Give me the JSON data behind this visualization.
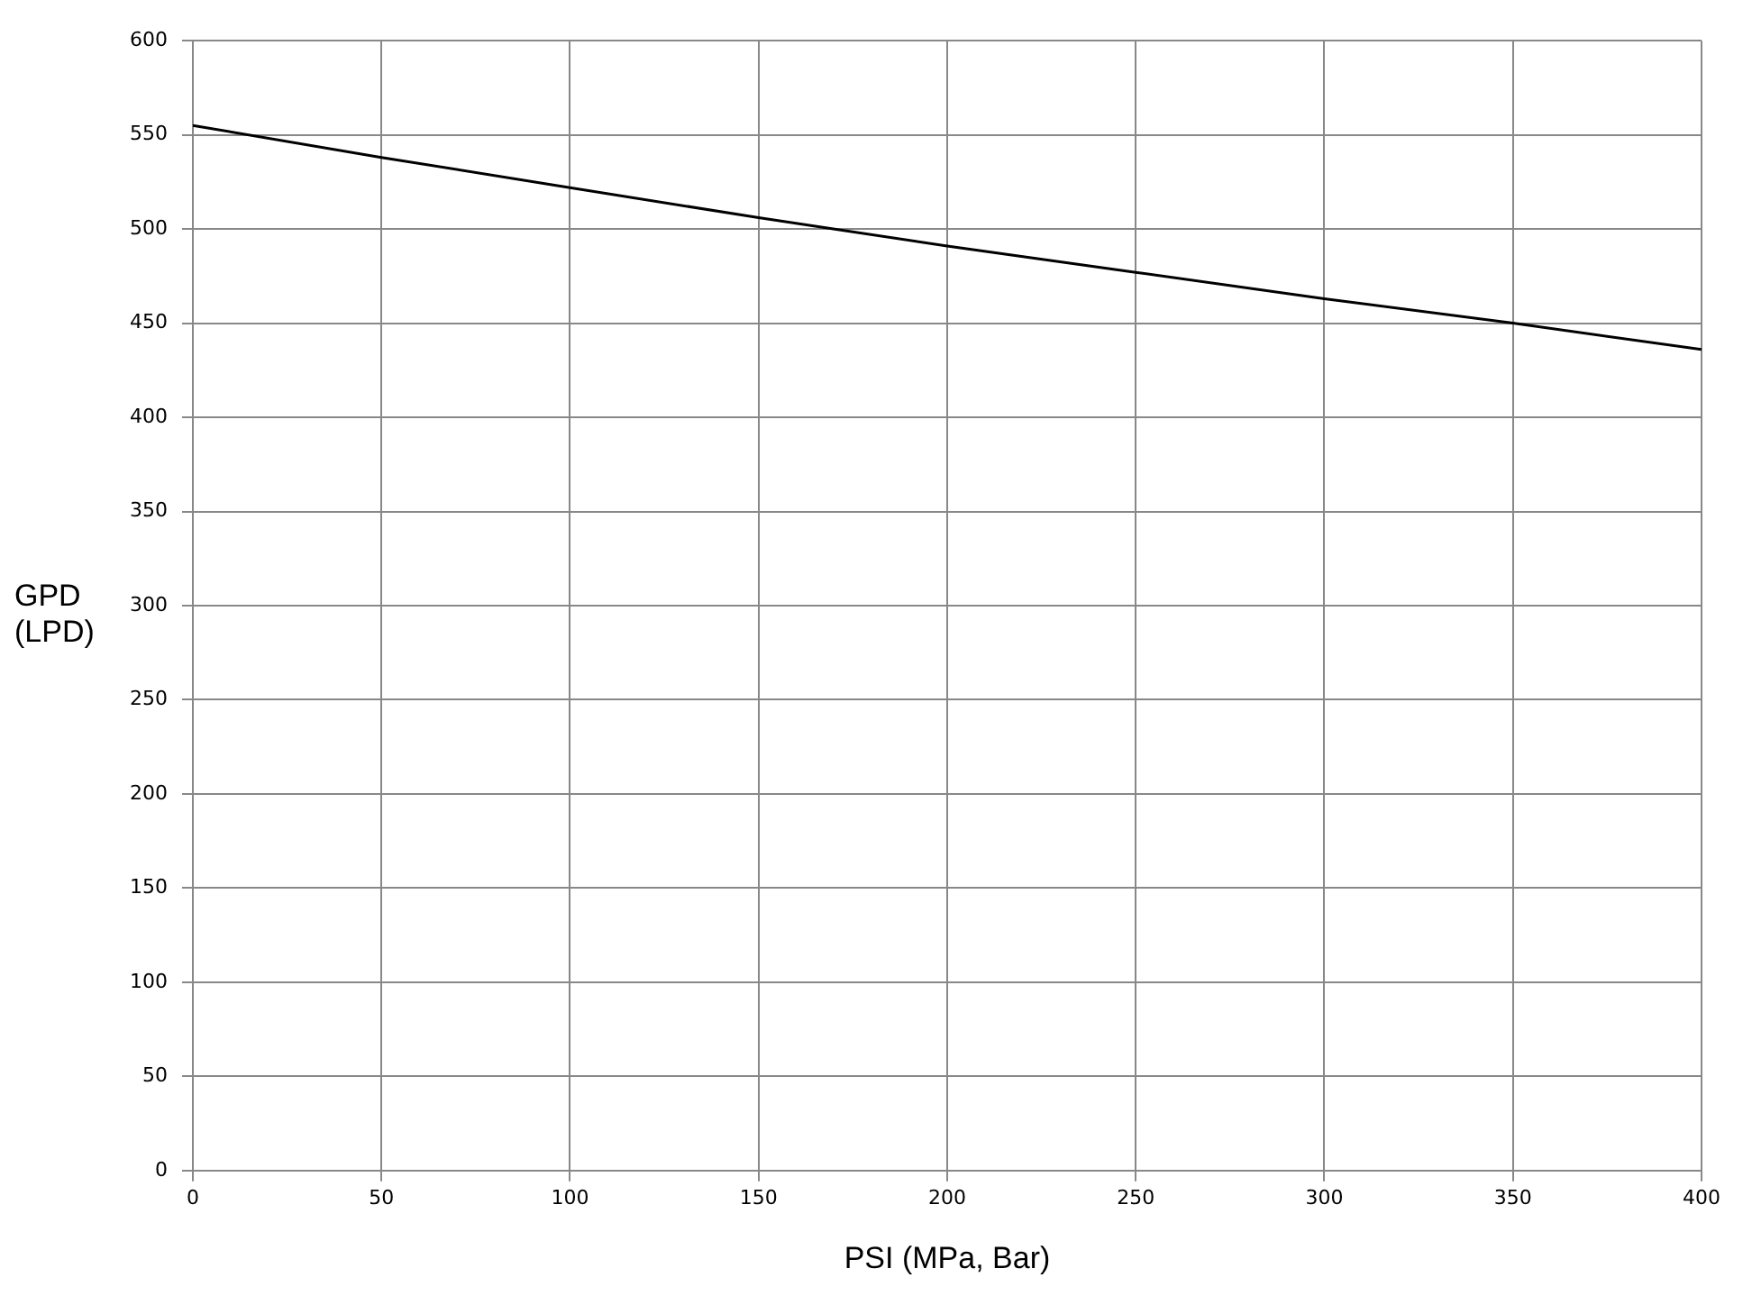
{
  "chart_data": {
    "type": "line",
    "xlabel": "PSI (MPa, Bar)",
    "ylabel": "GPD (LPD)",
    "x": [
      0,
      50,
      100,
      150,
      200,
      250,
      300,
      350,
      400
    ],
    "series": [
      {
        "color": "#000000",
        "values": [
          555,
          538,
          522,
          506,
          491,
          477,
          463,
          450,
          436
        ]
      }
    ],
    "xlim": [
      0,
      400
    ],
    "xticks": [
      0,
      50,
      100,
      150,
      200,
      250,
      300,
      350,
      400
    ],
    "ylim": [
      0,
      600
    ],
    "yticks": [
      0,
      50,
      100,
      150,
      200,
      250,
      300,
      350,
      400,
      450,
      500,
      550,
      600
    ],
    "grid": true,
    "legend": false,
    "marker": "none",
    "line_style": "solid"
  }
}
